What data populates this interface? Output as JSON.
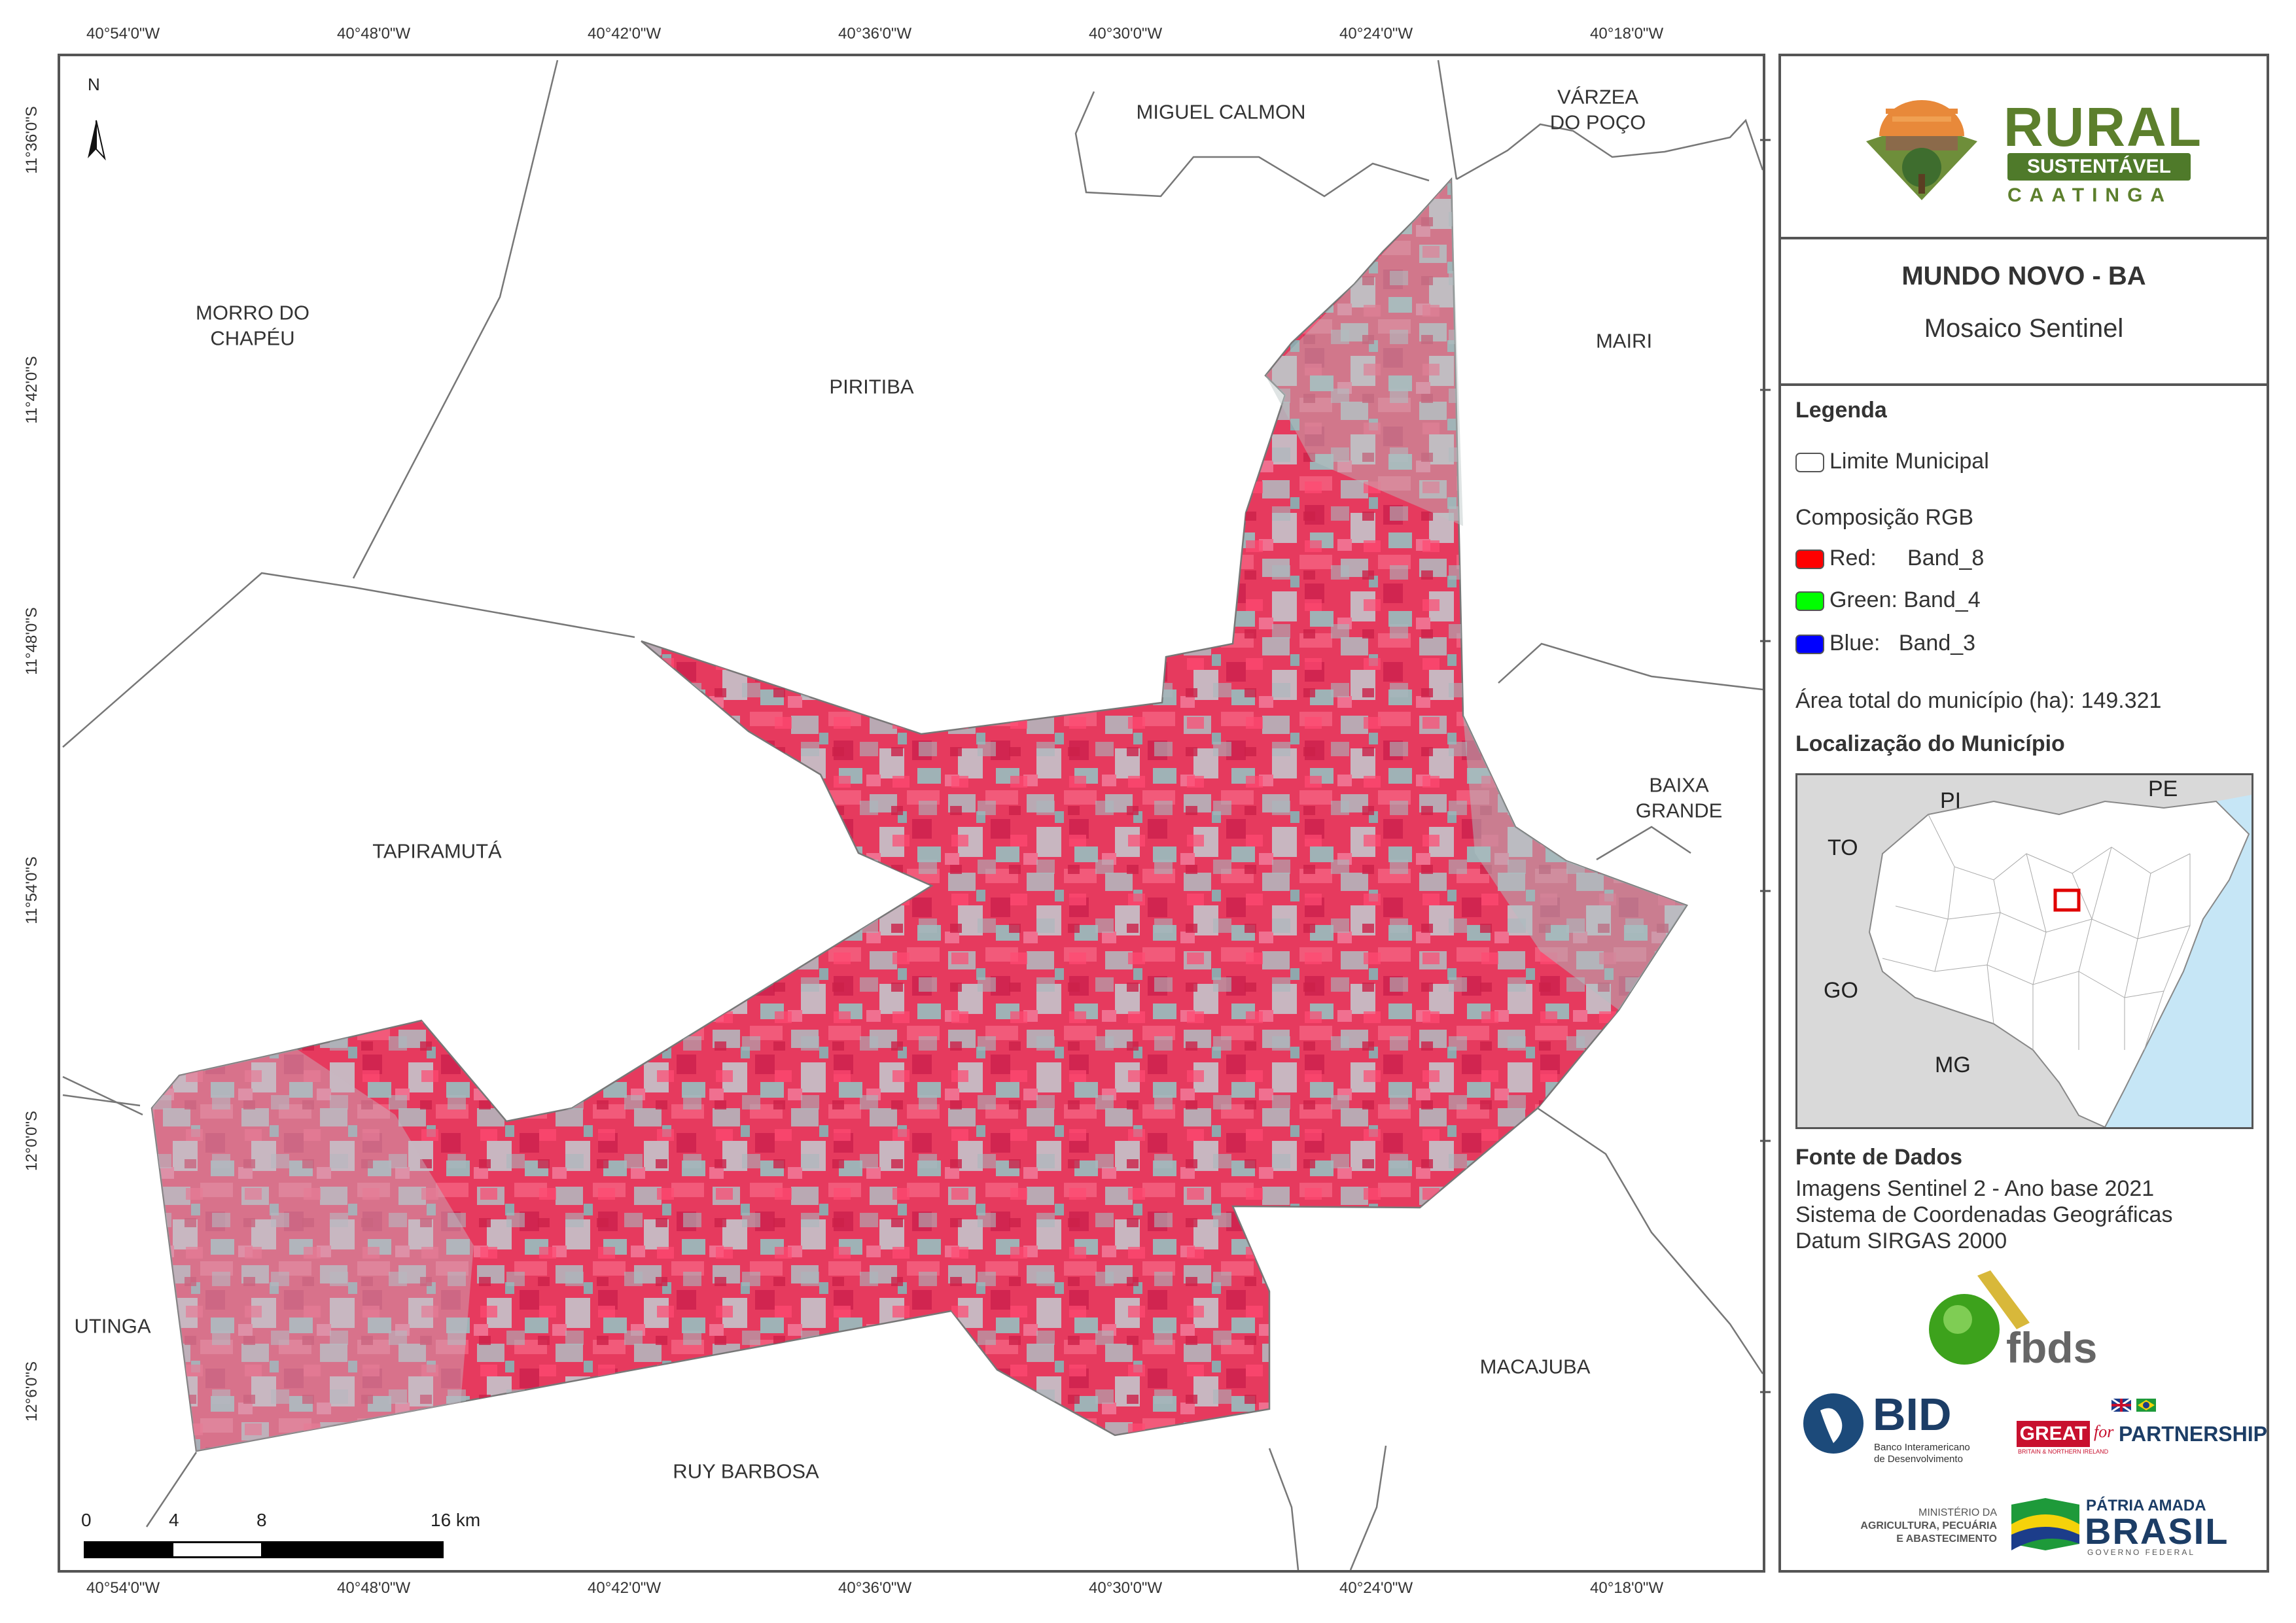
{
  "map": {
    "top_coords": [
      "40°54'0\"W",
      "40°48'0\"W",
      "40°42'0\"W",
      "40°36'0\"W",
      "40°30'0\"W",
      "40°24'0\"W",
      "40°18'0\"W"
    ],
    "bottom_coords": [
      "40°54'0\"W",
      "40°48'0\"W",
      "40°42'0\"W",
      "40°36'0\"W",
      "40°30'0\"W",
      "40°24'0\"W",
      "40°18'0\"W"
    ],
    "left_coords": [
      "11°36'0\"S",
      "11°42'0\"S",
      "11°48'0\"S",
      "11°54'0\"S",
      "12°0'0\"S",
      "12°6'0\"S"
    ],
    "north_label": "N",
    "municipalities": {
      "miguel_calmon": "MIGUEL CALMON",
      "varzea_do_poco": "VÁRZEA\nDO POÇO",
      "morro_do_chapeu": "MORRO DO\nCHAPÉU",
      "piritiba": "PIRITIBA",
      "mairi": "MAIRI",
      "tapiramuta": "TAPIRAMUTÁ",
      "baixa_grande": "BAIXA GRANDE",
      "utinga": "UTINGA",
      "macajuba": "MACAJUBA",
      "ruy_barbosa": "RUY BARBOSA"
    },
    "scale": {
      "labels": [
        "0",
        "4",
        "8",
        "16 km"
      ]
    },
    "colors": {
      "imagery_red": "#e8335a",
      "imagery_gray": "#a9a7ac",
      "border": "#777777"
    }
  },
  "panel": {
    "logo": {
      "line1": "RURAL",
      "line2": "SUSTENTÁVEL",
      "line3": "CAATINGA"
    },
    "title": "MUNDO NOVO - BA",
    "subtitle": "Mosaico Sentinel",
    "legend": {
      "heading": "Legenda",
      "limit_label": "Limite Municipal",
      "rgb_heading": "Composição RGB",
      "bands": [
        {
          "label": "Red:     Band_8",
          "color": "#ff0000"
        },
        {
          "label": "Green: Band_4",
          "color": "#00ff00"
        },
        {
          "label": "Blue:   Band_3",
          "color": "#0000ff"
        }
      ],
      "area": "Área total do município (ha): 149.321",
      "location_heading": "Localização do Município",
      "inset_labels": {
        "pi": "PI",
        "pe": "PE",
        "to": "TO",
        "go": "GO",
        "mg": "MG"
      }
    },
    "sources": {
      "heading": "Fonte de Dados",
      "lines": [
        "Imagens Sentinel 2 - Ano base 2021",
        "Sistema de Coordenadas Geográficas",
        "Datum SIRGAS 2000"
      ]
    },
    "sponsors": {
      "fbds": "fbds",
      "bid": "BID",
      "bid_sub1": "Banco Interamericano",
      "bid_sub2": "de Desenvolvimento",
      "great": "GREAT",
      "for": "for",
      "partnership": "PARTNERSHIP",
      "great_sub": "BRITAIN & NORTHERN IRELAND",
      "ministerio1": "MINISTÉRIO DA",
      "ministerio2": "AGRICULTURA, PECUÁRIA",
      "ministerio3": "E ABASTECIMENTO",
      "patria": "PÁTRIA AMADA",
      "brasil": "BRASIL",
      "governo": "GOVERNO FEDERAL"
    }
  }
}
